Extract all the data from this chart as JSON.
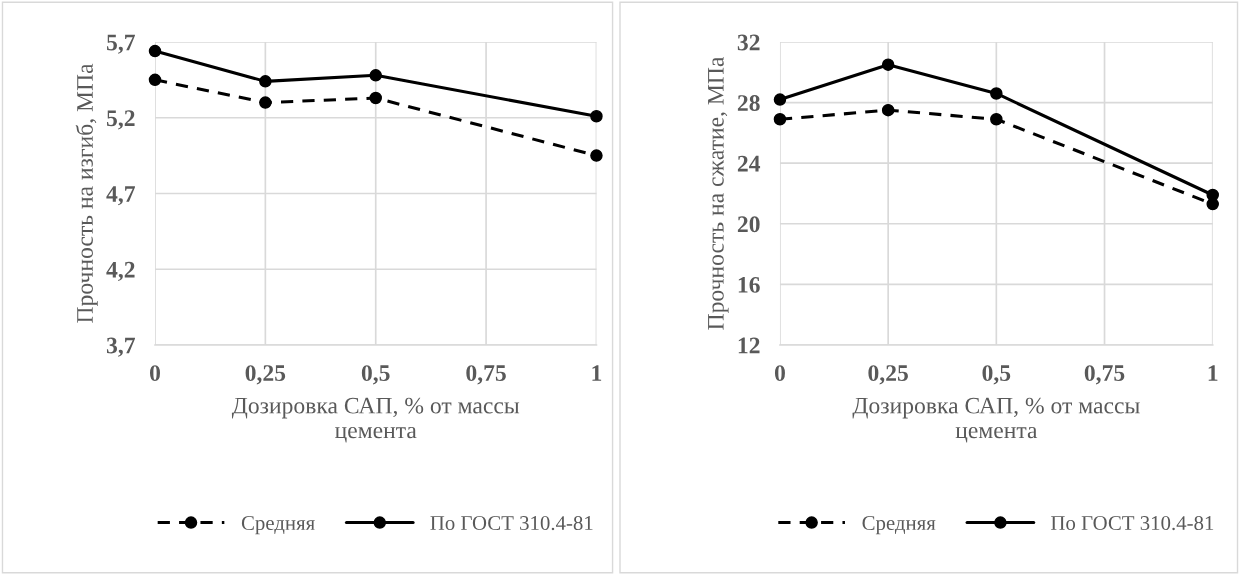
{
  "chart_data": [
    {
      "type": "line",
      "ylabel": "Прочность на изгиб, МПа",
      "xlabel": "Дозировка САП, % от массы\nцемента",
      "x": [
        0,
        0.25,
        0.5,
        1
      ],
      "series": [
        {
          "name": "Средняя",
          "color": "#000000",
          "line_style": "dashed",
          "values": [
            5.45,
            5.3,
            5.33,
            4.95
          ]
        },
        {
          "name": "По ГОСТ 310.4-81",
          "color": "#000000",
          "line_style": "solid",
          "values": [
            5.64,
            5.44,
            5.48,
            5.21
          ]
        }
      ],
      "xlim": [
        0,
        1
      ],
      "xticks": [
        {
          "value": 0,
          "label": "0"
        },
        {
          "value": 0.25,
          "label": "0,25"
        },
        {
          "value": 0.5,
          "label": "0,5"
        },
        {
          "value": 0.75,
          "label": "0,75"
        },
        {
          "value": 1,
          "label": "1"
        }
      ],
      "ylim": [
        3.7,
        5.7
      ],
      "yticks": [
        {
          "value": 3.7,
          "label": "3,7"
        },
        {
          "value": 4.2,
          "label": "4,2"
        },
        {
          "value": 4.7,
          "label": "4,7"
        },
        {
          "value": 5.2,
          "label": "5,2"
        },
        {
          "value": 5.7,
          "label": "5,7"
        }
      ],
      "grid": true,
      "legend": "bottom",
      "marker": "circle"
    },
    {
      "type": "line",
      "ylabel": "Прочность на сжатие, МПа",
      "xlabel": "Дозировка САП, % от массы\nцемента",
      "x": [
        0,
        0.25,
        0.5,
        1
      ],
      "series": [
        {
          "name": "Средняя",
          "color": "#000000",
          "line_style": "dashed",
          "values": [
            26.9,
            27.5,
            26.9,
            21.3
          ]
        },
        {
          "name": "По ГОСТ 310.4-81",
          "color": "#000000",
          "line_style": "solid",
          "values": [
            28.2,
            30.5,
            28.6,
            21.9
          ]
        }
      ],
      "xlim": [
        0,
        1
      ],
      "xticks": [
        {
          "value": 0,
          "label": "0"
        },
        {
          "value": 0.25,
          "label": "0,25"
        },
        {
          "value": 0.5,
          "label": "0,5"
        },
        {
          "value": 0.75,
          "label": "0,75"
        },
        {
          "value": 1,
          "label": "1"
        }
      ],
      "ylim": [
        12,
        32
      ],
      "yticks": [
        12,
        16,
        20,
        24,
        28,
        32
      ],
      "grid": true,
      "legend": "bottom",
      "marker": "circle"
    }
  ]
}
